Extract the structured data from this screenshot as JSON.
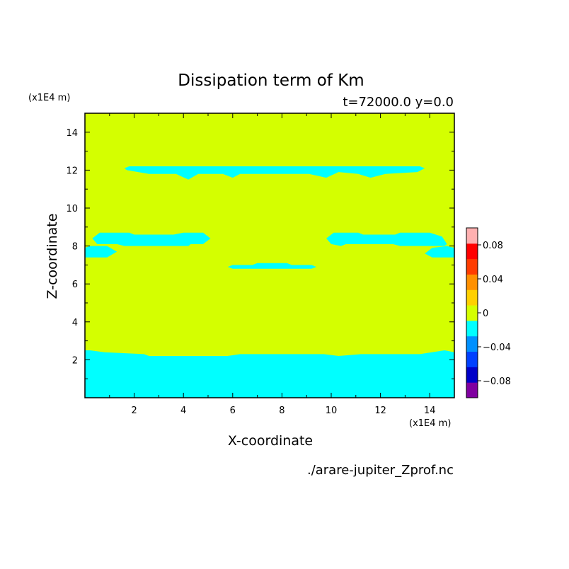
{
  "chart_data": {
    "type": "heatmap",
    "title": "Dissipation term of Km",
    "subtitle": "t=72000.0 y=0.0",
    "xlabel": "X-coordinate",
    "ylabel": "Z-coordinate",
    "x_unit": "(x1E4 m)",
    "y_unit": "(x1E4 m)",
    "footer": "./arare-jupiter_Zprof.nc",
    "xlim": [
      0,
      15
    ],
    "ylim": [
      0,
      15
    ],
    "x_ticks": [
      2,
      4,
      6,
      8,
      10,
      12,
      14
    ],
    "y_ticks": [
      2,
      4,
      6,
      8,
      10,
      12,
      14
    ],
    "background_level": {
      "range": [
        0,
        0.02
      ],
      "color": "#d4ff00"
    },
    "negative_regions": [
      {
        "range": [
          -0.02,
          0
        ],
        "color": "#00ffff",
        "polygon": [
          [
            0,
            0
          ],
          [
            15,
            0
          ],
          [
            15,
            2.4
          ],
          [
            14.6,
            2.5
          ],
          [
            13.6,
            2.3
          ],
          [
            11.2,
            2.3
          ],
          [
            10.3,
            2.2
          ],
          [
            9.7,
            2.3
          ],
          [
            6.3,
            2.3
          ],
          [
            5.8,
            2.2
          ],
          [
            2.6,
            2.2
          ],
          [
            2.4,
            2.3
          ],
          [
            0.8,
            2.4
          ],
          [
            0.2,
            2.5
          ],
          [
            0,
            2.5
          ]
        ]
      },
      {
        "range": [
          -0.02,
          0
        ],
        "color": "#00ffff",
        "polygon": [
          [
            1.6,
            12.1
          ],
          [
            1.8,
            12.2
          ],
          [
            13.6,
            12.2
          ],
          [
            13.8,
            12.1
          ],
          [
            13.5,
            11.9
          ],
          [
            12.2,
            11.8
          ],
          [
            11.6,
            11.6
          ],
          [
            11.1,
            11.8
          ],
          [
            10.3,
            11.9
          ],
          [
            9.8,
            11.6
          ],
          [
            9.1,
            11.8
          ],
          [
            6.3,
            11.8
          ],
          [
            6,
            11.6
          ],
          [
            5.6,
            11.8
          ],
          [
            4.6,
            11.8
          ],
          [
            4.2,
            11.5
          ],
          [
            3.7,
            11.8
          ],
          [
            2.6,
            11.8
          ],
          [
            1.7,
            12
          ]
        ]
      },
      {
        "range": [
          -0.02,
          0
        ],
        "color": "#00ffff",
        "polygon": [
          [
            0.3,
            8.4
          ],
          [
            0.6,
            8.7
          ],
          [
            1.8,
            8.7
          ],
          [
            2,
            8.6
          ],
          [
            3.6,
            8.6
          ],
          [
            4,
            8.7
          ],
          [
            4.8,
            8.7
          ],
          [
            5.1,
            8.4
          ],
          [
            4.8,
            8.1
          ],
          [
            4.3,
            8.1
          ],
          [
            4.2,
            8
          ],
          [
            1.6,
            8
          ],
          [
            1.3,
            8.1
          ],
          [
            0.5,
            8.1
          ]
        ]
      },
      {
        "range": [
          -0.02,
          0
        ],
        "color": "#00ffff",
        "polygon": [
          [
            0,
            7.9
          ],
          [
            0.2,
            8
          ],
          [
            0.9,
            8
          ],
          [
            1.3,
            7.7
          ],
          [
            0.9,
            7.4
          ],
          [
            0,
            7.4
          ]
        ]
      },
      {
        "range": [
          -0.02,
          0
        ],
        "color": "#00ffff",
        "polygon": [
          [
            9.8,
            8.4
          ],
          [
            10.1,
            8.7
          ],
          [
            11.1,
            8.7
          ],
          [
            11.3,
            8.6
          ],
          [
            12.6,
            8.6
          ],
          [
            12.8,
            8.7
          ],
          [
            14,
            8.7
          ],
          [
            14.5,
            8.5
          ],
          [
            14.7,
            8.1
          ],
          [
            14.6,
            8
          ],
          [
            12.8,
            8
          ],
          [
            12.5,
            8.1
          ],
          [
            10.6,
            8.1
          ],
          [
            10.4,
            8
          ],
          [
            10,
            8.1
          ]
        ]
      },
      {
        "range": [
          -0.02,
          0
        ],
        "color": "#00ffff",
        "polygon": [
          [
            13.8,
            7.6
          ],
          [
            14.1,
            7.9
          ],
          [
            14.7,
            8
          ],
          [
            15,
            7.9
          ],
          [
            15,
            7.4
          ],
          [
            14.1,
            7.4
          ]
        ]
      },
      {
        "range": [
          -0.02,
          0
        ],
        "color": "#00ffff",
        "polygon": [
          [
            5.8,
            6.9
          ],
          [
            6,
            7
          ],
          [
            6.8,
            7
          ],
          [
            7,
            7.1
          ],
          [
            8.2,
            7.1
          ],
          [
            8.4,
            7
          ],
          [
            9.2,
            7
          ],
          [
            9.4,
            6.9
          ],
          [
            9.2,
            6.8
          ],
          [
            6,
            6.8
          ]
        ]
      }
    ],
    "colorbar": {
      "levels": [
        -0.1,
        -0.08,
        -0.06,
        -0.04,
        -0.02,
        0,
        0.02,
        0.04,
        0.06,
        0.08,
        0.1
      ],
      "colors": [
        "#8000a0",
        "#0000c8",
        "#0040ff",
        "#0090ff",
        "#00ffff",
        "#d4ff00",
        "#ffd000",
        "#ff9000",
        "#ff3c00",
        "#ff0000",
        "#ffb0b0"
      ],
      "labels": [
        "0.08",
        "0.04",
        "0",
        "−0.04",
        "−0.08"
      ]
    }
  }
}
